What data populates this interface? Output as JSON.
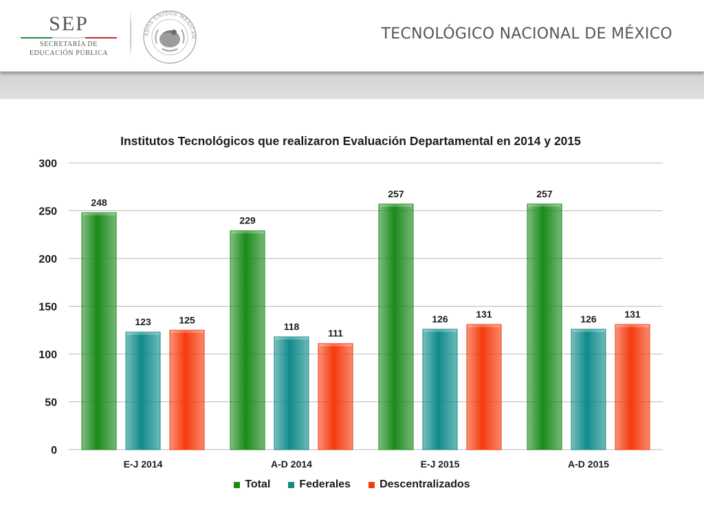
{
  "header": {
    "sep_title": "SEP",
    "sep_line1": "SECRETARÍA DE",
    "sep_line2": "EDUCACIÓN PÚBLICA",
    "seal_text": "ESTADOS UNIDOS MEXICANOS",
    "institution": "TECNOLÓGICO NACIONAL DE MÉXICO"
  },
  "colors": {
    "total": "#1a8a1a",
    "federales": "#0f8a8a",
    "descentralizados": "#f53a0c"
  },
  "chart_data": {
    "type": "bar",
    "title": "Institutos Tecnológicos que realizaron Evaluación Departamental en 2014 y 2015",
    "xlabel": "",
    "ylabel": "",
    "categories": [
      "E-J 2014",
      "A-D 2014",
      "E-J 2015",
      "A-D 2015"
    ],
    "series": [
      {
        "name": "Total",
        "values": [
          248,
          229,
          257,
          257
        ]
      },
      {
        "name": "Federales",
        "values": [
          123,
          118,
          126,
          126
        ]
      },
      {
        "name": "Descentralizados",
        "values": [
          125,
          111,
          131,
          131
        ]
      }
    ],
    "ylim": [
      0,
      300
    ],
    "yticks": [
      "0",
      "50",
      "100",
      "150",
      "200",
      "250",
      "300"
    ],
    "grid": true,
    "legend": "bottom"
  }
}
